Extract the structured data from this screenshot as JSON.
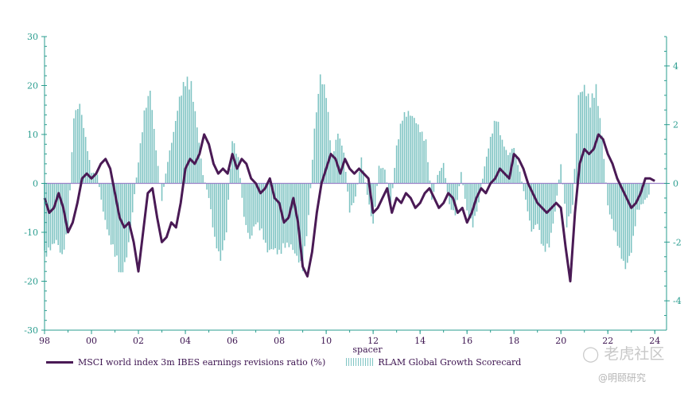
{
  "chart_data": {
    "type": "bar+line",
    "xlabel": "spacer",
    "x_ticks": [
      "98",
      "00",
      "02",
      "04",
      "06",
      "08",
      "10",
      "12",
      "14",
      "16",
      "18",
      "20",
      "22",
      "24"
    ],
    "x_range": [
      1998,
      2024.5
    ],
    "y_left": {
      "range": [
        -30,
        30
      ],
      "ticks": [
        "30",
        "20",
        "10",
        "0",
        "-10",
        "-20",
        "-30"
      ]
    },
    "y_right": {
      "range": [
        -5,
        5
      ],
      "ticks": [
        "4",
        "2",
        "0",
        "-2",
        "-4"
      ]
    },
    "legend": [
      "MSCI world index 3m IBES earnings revisions ratio (%)",
      "RLAM Global Growth Scorecard"
    ],
    "series": [
      {
        "name": "MSCI world index 3m IBES earnings revisions ratio (%)",
        "axis": "left",
        "color": "#4a1a55",
        "points": [
          [
            1998.0,
            -3
          ],
          [
            1998.2,
            -6
          ],
          [
            1998.4,
            -5
          ],
          [
            1998.6,
            -2
          ],
          [
            1998.8,
            -5
          ],
          [
            1999.0,
            -10
          ],
          [
            1999.2,
            -8
          ],
          [
            1999.4,
            -4
          ],
          [
            1999.6,
            1
          ],
          [
            1999.8,
            2
          ],
          [
            2000.0,
            1
          ],
          [
            2000.2,
            2
          ],
          [
            2000.4,
            4
          ],
          [
            2000.6,
            5
          ],
          [
            2000.8,
            3
          ],
          [
            2001.0,
            -2
          ],
          [
            2001.2,
            -7
          ],
          [
            2001.4,
            -9
          ],
          [
            2001.6,
            -8
          ],
          [
            2001.8,
            -12
          ],
          [
            2002.0,
            -18
          ],
          [
            2002.2,
            -10
          ],
          [
            2002.4,
            -2
          ],
          [
            2002.6,
            -1
          ],
          [
            2002.8,
            -7
          ],
          [
            2003.0,
            -12
          ],
          [
            2003.2,
            -11
          ],
          [
            2003.4,
            -8
          ],
          [
            2003.6,
            -9
          ],
          [
            2003.8,
            -4
          ],
          [
            2004.0,
            3
          ],
          [
            2004.2,
            5
          ],
          [
            2004.4,
            4
          ],
          [
            2004.6,
            6
          ],
          [
            2004.8,
            10
          ],
          [
            2005.0,
            8
          ],
          [
            2005.2,
            4
          ],
          [
            2005.4,
            2
          ],
          [
            2005.6,
            3
          ],
          [
            2005.8,
            2
          ],
          [
            2006.0,
            6
          ],
          [
            2006.2,
            3
          ],
          [
            2006.4,
            5
          ],
          [
            2006.6,
            4
          ],
          [
            2006.8,
            1
          ],
          [
            2007.0,
            0
          ],
          [
            2007.2,
            -2
          ],
          [
            2007.4,
            -1
          ],
          [
            2007.6,
            1
          ],
          [
            2007.8,
            -3
          ],
          [
            2008.0,
            -4
          ],
          [
            2008.2,
            -8
          ],
          [
            2008.4,
            -7
          ],
          [
            2008.6,
            -3
          ],
          [
            2008.8,
            -8
          ],
          [
            2009.0,
            -17
          ],
          [
            2009.2,
            -19
          ],
          [
            2009.4,
            -14
          ],
          [
            2009.6,
            -6
          ],
          [
            2009.8,
            0
          ],
          [
            2010.0,
            3
          ],
          [
            2010.2,
            6
          ],
          [
            2010.4,
            5
          ],
          [
            2010.6,
            2
          ],
          [
            2010.8,
            5
          ],
          [
            2011.0,
            3
          ],
          [
            2011.2,
            2
          ],
          [
            2011.4,
            3
          ],
          [
            2011.6,
            2
          ],
          [
            2011.8,
            1
          ],
          [
            2012.0,
            -6
          ],
          [
            2012.2,
            -5
          ],
          [
            2012.4,
            -3
          ],
          [
            2012.6,
            -1
          ],
          [
            2012.8,
            -6
          ],
          [
            2013.0,
            -3
          ],
          [
            2013.2,
            -4
          ],
          [
            2013.4,
            -2
          ],
          [
            2013.6,
            -3
          ],
          [
            2013.8,
            -5
          ],
          [
            2014.0,
            -4
          ],
          [
            2014.2,
            -2
          ],
          [
            2014.4,
            -1
          ],
          [
            2014.6,
            -3
          ],
          [
            2014.8,
            -5
          ],
          [
            2015.0,
            -4
          ],
          [
            2015.2,
            -2
          ],
          [
            2015.4,
            -3
          ],
          [
            2015.6,
            -6
          ],
          [
            2015.8,
            -5
          ],
          [
            2016.0,
            -8
          ],
          [
            2016.2,
            -6
          ],
          [
            2016.4,
            -3
          ],
          [
            2016.6,
            -1
          ],
          [
            2016.8,
            -2
          ],
          [
            2017.0,
            0
          ],
          [
            2017.2,
            1
          ],
          [
            2017.4,
            3
          ],
          [
            2017.6,
            2
          ],
          [
            2017.8,
            1
          ],
          [
            2018.0,
            6
          ],
          [
            2018.2,
            5
          ],
          [
            2018.4,
            3
          ],
          [
            2018.6,
            0
          ],
          [
            2018.8,
            -2
          ],
          [
            2019.0,
            -4
          ],
          [
            2019.2,
            -5
          ],
          [
            2019.4,
            -6
          ],
          [
            2019.6,
            -5
          ],
          [
            2019.8,
            -4
          ],
          [
            2020.0,
            -5
          ],
          [
            2020.2,
            -13
          ],
          [
            2020.4,
            -20
          ],
          [
            2020.6,
            -6
          ],
          [
            2020.8,
            4
          ],
          [
            2021.0,
            7
          ],
          [
            2021.2,
            6
          ],
          [
            2021.4,
            7
          ],
          [
            2021.6,
            10
          ],
          [
            2021.8,
            9
          ],
          [
            2022.0,
            6
          ],
          [
            2022.2,
            4
          ],
          [
            2022.4,
            1
          ],
          [
            2022.6,
            -1
          ],
          [
            2022.8,
            -3
          ],
          [
            2023.0,
            -5
          ],
          [
            2023.2,
            -4
          ],
          [
            2023.4,
            -2
          ],
          [
            2023.6,
            1
          ],
          [
            2023.8,
            1
          ],
          [
            2024.0,
            0.5
          ]
        ]
      },
      {
        "name": "RLAM Global Growth Scorecard",
        "axis": "right",
        "color": "#7fc4c3",
        "points": [
          [
            1998.0,
            -2.6
          ],
          [
            1998.25,
            -2.3
          ],
          [
            1998.5,
            -2.0
          ],
          [
            1998.75,
            -2.6
          ],
          [
            1999.0,
            -1.6
          ],
          [
            1999.25,
            2.4
          ],
          [
            1999.5,
            2.8
          ],
          [
            1999.75,
            1.6
          ],
          [
            2000.0,
            0.4
          ],
          [
            2000.25,
            0.3
          ],
          [
            2000.5,
            -1.0
          ],
          [
            2000.75,
            -1.9
          ],
          [
            2001.0,
            -2.5
          ],
          [
            2001.25,
            -3.3
          ],
          [
            2001.5,
            -2.6
          ],
          [
            2001.75,
            -1.0
          ],
          [
            2002.0,
            0.8
          ],
          [
            2002.25,
            2.5
          ],
          [
            2002.5,
            3.3
          ],
          [
            2002.75,
            1.2
          ],
          [
            2003.0,
            -0.6
          ],
          [
            2003.25,
            0.8
          ],
          [
            2003.5,
            1.8
          ],
          [
            2003.75,
            3.0
          ],
          [
            2004.0,
            3.7
          ],
          [
            2004.25,
            3.5
          ],
          [
            2004.5,
            2.0
          ],
          [
            2004.75,
            0.3
          ],
          [
            2005.0,
            -0.5
          ],
          [
            2005.25,
            -2.0
          ],
          [
            2005.5,
            -2.7
          ],
          [
            2005.75,
            -1.7
          ],
          [
            2006.0,
            1.6
          ],
          [
            2006.25,
            0.9
          ],
          [
            2006.5,
            -1.2
          ],
          [
            2006.75,
            -2.0
          ],
          [
            2007.0,
            -1.4
          ],
          [
            2007.25,
            -1.7
          ],
          [
            2007.5,
            -2.4
          ],
          [
            2007.75,
            -2.3
          ],
          [
            2008.0,
            -2.5
          ],
          [
            2008.25,
            -2.2
          ],
          [
            2008.5,
            -2.2
          ],
          [
            2008.75,
            -2.6
          ],
          [
            2009.0,
            -3.0
          ],
          [
            2009.25,
            -1.2
          ],
          [
            2009.5,
            1.9
          ],
          [
            2009.75,
            3.8
          ],
          [
            2010.0,
            3.2
          ],
          [
            2010.25,
            0.9
          ],
          [
            2010.5,
            1.8
          ],
          [
            2010.75,
            1.1
          ],
          [
            2011.0,
            -1.0
          ],
          [
            2011.25,
            -0.5
          ],
          [
            2011.5,
            0.9
          ],
          [
            2011.75,
            -0.4
          ],
          [
            2012.0,
            -1.5
          ],
          [
            2012.25,
            0.6
          ],
          [
            2012.5,
            0.5
          ],
          [
            2012.75,
            -0.9
          ],
          [
            2013.0,
            1.3
          ],
          [
            2013.25,
            2.4
          ],
          [
            2013.5,
            2.5
          ],
          [
            2013.75,
            2.3
          ],
          [
            2014.0,
            1.9
          ],
          [
            2014.25,
            1.5
          ],
          [
            2014.5,
            -0.6
          ],
          [
            2014.75,
            0.3
          ],
          [
            2015.0,
            0.7
          ],
          [
            2015.25,
            -0.8
          ],
          [
            2015.5,
            -1.1
          ],
          [
            2015.75,
            0.4
          ],
          [
            2016.0,
            -1.0
          ],
          [
            2016.25,
            -1.5
          ],
          [
            2016.5,
            -0.7
          ],
          [
            2016.75,
            0.6
          ],
          [
            2017.0,
            1.6
          ],
          [
            2017.25,
            2.4
          ],
          [
            2017.5,
            1.5
          ],
          [
            2017.75,
            1.0
          ],
          [
            2018.0,
            1.3
          ],
          [
            2018.25,
            0.4
          ],
          [
            2018.5,
            -0.6
          ],
          [
            2018.75,
            -1.7
          ],
          [
            2019.0,
            -1.4
          ],
          [
            2019.25,
            -2.4
          ],
          [
            2019.5,
            -2.2
          ],
          [
            2019.75,
            -1.0
          ],
          [
            2020.0,
            0.7
          ],
          [
            2020.25,
            -1.5
          ],
          [
            2020.5,
            -0.8
          ],
          [
            2020.75,
            3.1
          ],
          [
            2021.0,
            3.4
          ],
          [
            2021.25,
            2.9
          ],
          [
            2021.5,
            3.4
          ],
          [
            2021.75,
            1.7
          ],
          [
            2022.0,
            -0.8
          ],
          [
            2022.25,
            -1.6
          ],
          [
            2022.5,
            -2.4
          ],
          [
            2022.75,
            -3.0
          ],
          [
            2023.0,
            -2.4
          ],
          [
            2023.25,
            -1.0
          ],
          [
            2023.5,
            -0.7
          ],
          [
            2023.75,
            -0.4
          ]
        ]
      }
    ]
  },
  "watermark": {
    "brand": "老虎社区",
    "author": "@明颐研究"
  }
}
